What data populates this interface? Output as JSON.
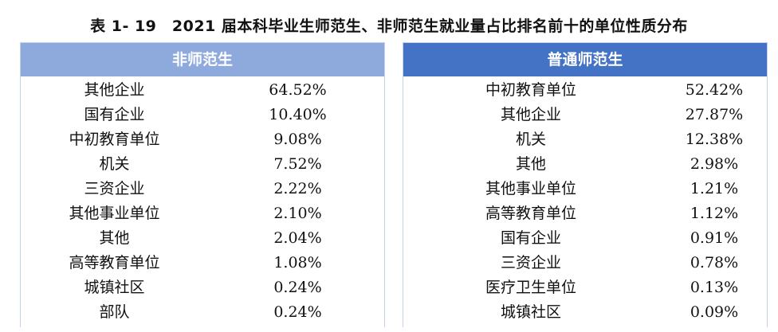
{
  "title": "表 1- 19　2021 届本科毕业生师范生、非师范生就业量占比排名前十的单位性质分布",
  "left_panel": {
    "header": "非师范生",
    "rows": [
      {
        "name": "其他企业",
        "value": "64.52%"
      },
      {
        "name": "国有企业",
        "value": "10.40%"
      },
      {
        "name": "中初教育单位",
        "value": "9.08%"
      },
      {
        "name": "机关",
        "value": "7.52%"
      },
      {
        "name": "三资企业",
        "value": "2.22%"
      },
      {
        "name": "其他事业单位",
        "value": "2.10%"
      },
      {
        "name": "其他",
        "value": "2.04%"
      },
      {
        "name": "高等教育单位",
        "value": "1.08%"
      },
      {
        "name": "城镇社区",
        "value": "0.24%"
      },
      {
        "name": "部队",
        "value": "0.24%"
      }
    ]
  },
  "right_panel": {
    "header": "普通师范生",
    "rows": [
      {
        "name": "中初教育单位",
        "value": "52.42%"
      },
      {
        "name": "其他企业",
        "value": "27.87%"
      },
      {
        "name": "机关",
        "value": "12.38%"
      },
      {
        "name": "其他",
        "value": "2.98%"
      },
      {
        "name": "其他事业单位",
        "value": "1.21%"
      },
      {
        "name": "高等教育单位",
        "value": "1.12%"
      },
      {
        "name": "国有企业",
        "value": "0.91%"
      },
      {
        "name": "三资企业",
        "value": "0.78%"
      },
      {
        "name": "医疗卫生单位",
        "value": "0.13%"
      },
      {
        "name": "城镇社区",
        "value": "0.09%"
      }
    ]
  },
  "colors": {
    "left_header": "#8eaadc",
    "right_header": "#4472c4",
    "border": "#c5d3ea"
  }
}
